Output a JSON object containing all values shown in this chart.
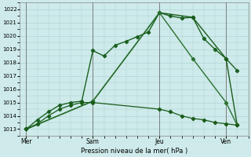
{
  "xlabel": "Pression niveau de la mer( hPa )",
  "ylim": [
    1012.5,
    1022.5
  ],
  "yticks": [
    1013,
    1014,
    1015,
    1016,
    1017,
    1018,
    1019,
    1020,
    1021,
    1022
  ],
  "bg_color": "#ceeaea",
  "grid_color": "#a8d0d0",
  "xtick_labels": [
    "Mer",
    "Sam",
    "Jeu",
    "Ven"
  ],
  "xtick_positions": [
    0,
    30,
    60,
    90
  ],
  "xlim": [
    -3,
    100
  ],
  "vline_positions": [
    0,
    30,
    60,
    90
  ],
  "series": [
    {
      "x": [
        0,
        5,
        10,
        15,
        20,
        25,
        30,
        35,
        40,
        45,
        50,
        55,
        60,
        65,
        70,
        75,
        80,
        85,
        90,
        95
      ],
      "y": [
        1013.0,
        1013.7,
        1014.3,
        1014.8,
        1015.0,
        1015.1,
        1018.9,
        1018.5,
        1019.3,
        1019.6,
        1019.95,
        1020.3,
        1021.75,
        1021.5,
        1021.35,
        1021.4,
        1019.8,
        1019.0,
        1018.3,
        1017.4
      ],
      "color": "#1a6020",
      "marker": "D",
      "markersize": 2.2,
      "linewidth": 1.0
    },
    {
      "x": [
        0,
        30,
        60,
        75,
        90,
        95
      ],
      "y": [
        1013.0,
        1015.1,
        1021.75,
        1021.4,
        1018.3,
        1013.3
      ],
      "color": "#1a5c1a",
      "marker": "D",
      "markersize": 2.2,
      "linewidth": 1.0
    },
    {
      "x": [
        0,
        30,
        60,
        75,
        90,
        95
      ],
      "y": [
        1013.0,
        1015.1,
        1021.75,
        1018.3,
        1015.0,
        1013.3
      ],
      "color": "#2a7030",
      "marker": "D",
      "markersize": 2.2,
      "linewidth": 1.0
    },
    {
      "x": [
        0,
        5,
        10,
        15,
        20,
        25,
        30,
        60,
        65,
        70,
        75,
        80,
        85,
        90,
        95
      ],
      "y": [
        1013.0,
        1013.4,
        1014.0,
        1014.5,
        1014.8,
        1015.0,
        1015.0,
        1014.5,
        1014.3,
        1014.0,
        1013.8,
        1013.7,
        1013.5,
        1013.4,
        1013.3
      ],
      "color": "#1a5c1a",
      "marker": "D",
      "markersize": 2.2,
      "linewidth": 0.9
    }
  ]
}
